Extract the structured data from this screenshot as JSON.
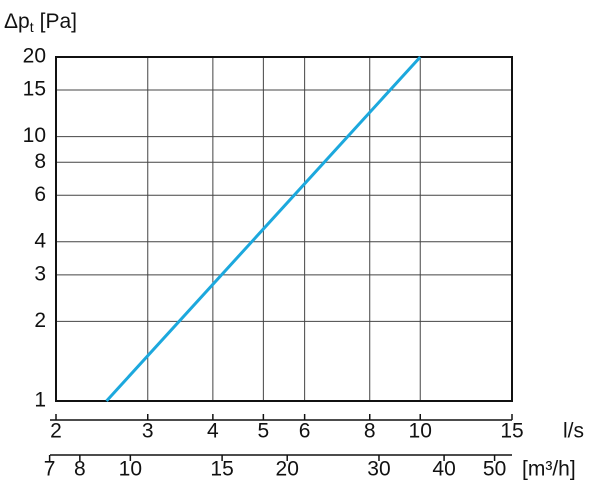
{
  "chart_data": {
    "type": "line",
    "y_label": {
      "main": "Δp",
      "sub": "t",
      "unit": "[Pa]"
    },
    "x_label": "l/s",
    "x2_label": "[m³/h]",
    "x": [
      2.5,
      10
    ],
    "series": [
      {
        "values": [
          1,
          20
        ],
        "color": "#1ca8dd"
      }
    ],
    "xlim": [
      2,
      15
    ],
    "xticks": [
      2,
      3,
      4,
      5,
      6,
      8,
      10,
      15
    ],
    "x2lim": [
      7.2,
      54
    ],
    "x2ticks": [
      7,
      8,
      10,
      15,
      20,
      30,
      40,
      50
    ],
    "ylim": [
      1,
      20
    ],
    "yticks": [
      1,
      2,
      3,
      4,
      6,
      8,
      10,
      15,
      20
    ],
    "xscale": "log",
    "yscale": "log",
    "grid": true
  }
}
